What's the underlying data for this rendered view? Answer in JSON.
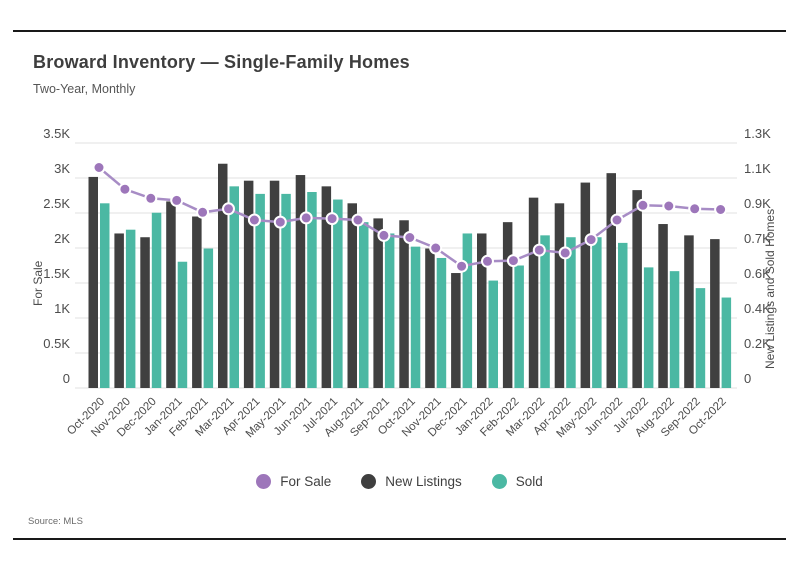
{
  "header": {
    "title": "Broward Inventory — Single-Family Homes",
    "subtitle": "Two-Year, Monthly"
  },
  "source": "Source: MLS",
  "legend": {
    "for_sale": "For Sale",
    "new_listings": "New Listings",
    "sold": "Sold"
  },
  "colors": {
    "for_sale_line": "#a78cc5",
    "for_sale_marker": "#9d76ba",
    "new_listings_bar": "#404040",
    "sold_bar": "#4bb8a3",
    "gridline": "#e0e0e0",
    "axis_text": "#4c4c4c"
  },
  "chart_data": {
    "type": "bar",
    "title": "Broward Inventory — Single-Family Homes",
    "subtitle": "Two-Year, Monthly",
    "grid": "horizontal",
    "legend_position": "bottom",
    "categories": [
      "Oct-2020",
      "Nov-2020",
      "Dec-2020",
      "Jan-2021",
      "Feb-2021",
      "Mar-2021",
      "Apr-2021",
      "May-2021",
      "Jun-2021",
      "Jul-2021",
      "Aug-2021",
      "Sep-2021",
      "Oct-2021",
      "Nov-2021",
      "Dec-2021",
      "Jan-2022",
      "Feb-2022",
      "Mar-2022",
      "Apr-2022",
      "May-2022",
      "Jun-2022",
      "Jul-2022",
      "Aug-2022",
      "Sep-2022",
      "Oct-2022"
    ],
    "series": [
      {
        "name": "For Sale",
        "type": "line",
        "axis": "left",
        "color": "#9d76ba",
        "values": [
          3150,
          2840,
          2710,
          2680,
          2510,
          2560,
          2400,
          2370,
          2430,
          2420,
          2400,
          2180,
          2150,
          2000,
          1740,
          1810,
          1820,
          1970,
          1930,
          2120,
          2400,
          2610,
          2600,
          2560,
          2550
        ]
      },
      {
        "name": "New Listings",
        "type": "bar",
        "axis": "right",
        "color": "#404040",
        "values": [
          1120,
          820,
          800,
          990,
          910,
          1190,
          1100,
          1100,
          1130,
          1070,
          980,
          900,
          890,
          740,
          610,
          820,
          880,
          1010,
          980,
          1090,
          1140,
          1050,
          870,
          810,
          790
        ]
      },
      {
        "name": "Sold",
        "type": "bar",
        "axis": "right",
        "color": "#4bb8a3",
        "values": [
          980,
          840,
          930,
          670,
          740,
          1070,
          1030,
          1030,
          1040,
          1000,
          880,
          820,
          750,
          690,
          820,
          570,
          650,
          810,
          800,
          800,
          770,
          640,
          620,
          530,
          480
        ]
      }
    ],
    "left_axis": {
      "label": "For Sale",
      "min": 0,
      "max": 3500,
      "tick_labels": [
        "3.5K",
        "3K",
        "2.5K",
        "2K",
        "1.5K",
        "1K",
        "0.5K",
        "0"
      ]
    },
    "right_axis": {
      "label": "New Listings and Sold Homes",
      "min": 0,
      "max": 1300,
      "tick_labels": [
        "1.3K",
        "1.1K",
        "0.9K",
        "0.7K",
        "0.6K",
        "0.4K",
        "0.2K",
        "0"
      ]
    }
  }
}
